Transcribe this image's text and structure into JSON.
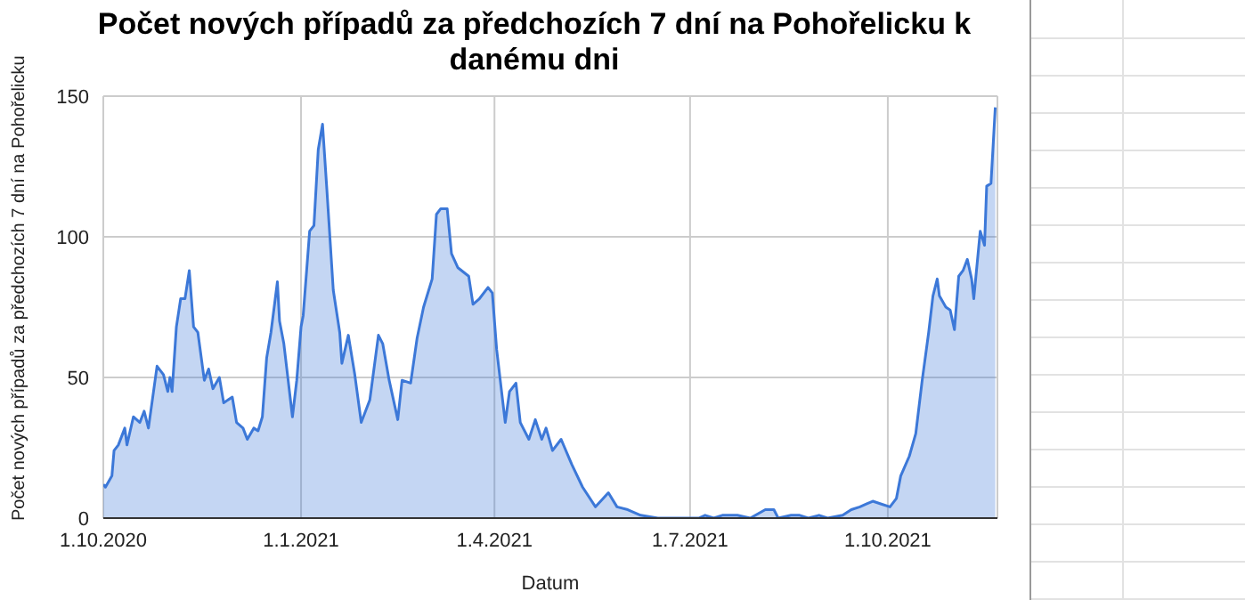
{
  "chart_data": {
    "type": "area",
    "title": "Počet nových případů za předchozích 7 dní na Pohořelicku k danému dni",
    "xlabel": "Datum",
    "ylabel": "Počet nových případů za předchozích 7 dní na Pohořelicku",
    "grid": true,
    "legend": false,
    "x": [
      "2020-10-01",
      "2020-10-02",
      "2020-10-05",
      "2020-10-06",
      "2020-10-08",
      "2020-10-11",
      "2020-10-12",
      "2020-10-15",
      "2020-10-18",
      "2020-10-20",
      "2020-10-22",
      "2020-10-24",
      "2020-10-26",
      "2020-10-29",
      "2020-10-31",
      "2020-11-01",
      "2020-11-02",
      "2020-11-04",
      "2020-11-06",
      "2020-11-08",
      "2020-11-10",
      "2020-11-12",
      "2020-11-14",
      "2020-11-17",
      "2020-11-19",
      "2020-11-21",
      "2020-11-24",
      "2020-11-26",
      "2020-11-30",
      "2020-12-02",
      "2020-12-05",
      "2020-12-07",
      "2020-12-10",
      "2020-12-12",
      "2020-12-14",
      "2020-12-16",
      "2020-12-18",
      "2020-12-20",
      "2020-12-21",
      "2020-12-22",
      "2020-12-24",
      "2020-12-26",
      "2020-12-28",
      "2020-12-30",
      "2021-01-01",
      "2021-01-02",
      "2021-01-05",
      "2021-01-07",
      "2021-01-09",
      "2021-01-11",
      "2021-01-13",
      "2021-01-16",
      "2021-01-19",
      "2021-01-20",
      "2021-01-23",
      "2021-01-26",
      "2021-01-29",
      "2021-02-02",
      "2021-02-06",
      "2021-02-08",
      "2021-02-11",
      "2021-02-15",
      "2021-02-17",
      "2021-02-21",
      "2021-02-24",
      "2021-02-27",
      "2021-03-03",
      "2021-03-05",
      "2021-03-07",
      "2021-03-10",
      "2021-03-12",
      "2021-03-15",
      "2021-03-20",
      "2021-03-22",
      "2021-03-25",
      "2021-03-29",
      "2021-03-31",
      "2021-04-02",
      "2021-04-06",
      "2021-04-08",
      "2021-04-11",
      "2021-04-13",
      "2021-04-17",
      "2021-04-20",
      "2021-04-23",
      "2021-04-25",
      "2021-04-28",
      "2021-05-02",
      "2021-05-07",
      "2021-05-12",
      "2021-05-18",
      "2021-05-24",
      "2021-05-28",
      "2021-06-02",
      "2021-06-08",
      "2021-06-16",
      "2021-07-01",
      "2021-07-05",
      "2021-07-08",
      "2021-07-12",
      "2021-07-16",
      "2021-07-23",
      "2021-07-29",
      "2021-08-05",
      "2021-08-09",
      "2021-08-11",
      "2021-08-17",
      "2021-08-21",
      "2021-08-25",
      "2021-08-30",
      "2021-09-03",
      "2021-09-10",
      "2021-09-14",
      "2021-09-18",
      "2021-09-21",
      "2021-09-24",
      "2021-09-28",
      "2021-10-02",
      "2021-10-05",
      "2021-10-07",
      "2021-10-11",
      "2021-10-14",
      "2021-10-17",
      "2021-10-20",
      "2021-10-22",
      "2021-10-24",
      "2021-10-25",
      "2021-10-28",
      "2021-10-30",
      "2021-11-01",
      "2021-11-03",
      "2021-11-05",
      "2021-11-07",
      "2021-11-09",
      "2021-11-10",
      "2021-11-13",
      "2021-11-15",
      "2021-11-16",
      "2021-11-18",
      "2021-11-20"
    ],
    "series": [
      {
        "color": "#3c78d8",
        "values": [
          12,
          11,
          15,
          24,
          26,
          32,
          26,
          36,
          34,
          38,
          32,
          43,
          54,
          51,
          45,
          50,
          45,
          68,
          78,
          78,
          88,
          68,
          66,
          49,
          53,
          46,
          50,
          41,
          43,
          34,
          32,
          28,
          32,
          31,
          36,
          57,
          66,
          78,
          84,
          70,
          62,
          49,
          36,
          49,
          68,
          72,
          102,
          104,
          131,
          140,
          117,
          81,
          66,
          55,
          65,
          51,
          34,
          42,
          65,
          62,
          49,
          35,
          49,
          48,
          64,
          75,
          85,
          108,
          110,
          110,
          94,
          89,
          86,
          76,
          78,
          82,
          80,
          60,
          34,
          45,
          48,
          34,
          28,
          35,
          28,
          32,
          24,
          28,
          19,
          11,
          4,
          9,
          4,
          3,
          1,
          0,
          0,
          0,
          1,
          0,
          1,
          1,
          0,
          3,
          3,
          0,
          1,
          1,
          0,
          1,
          0,
          1,
          3,
          4,
          5,
          6,
          5,
          4,
          7,
          15,
          22,
          30,
          49,
          66,
          79,
          85,
          79,
          75,
          74,
          67,
          86,
          88,
          92,
          85,
          78,
          102,
          97,
          118,
          119,
          146
        ]
      }
    ],
    "xlim": [
      "2020-10-01",
      "2021-11-21"
    ],
    "xticks": [
      {
        "value": "2020-10-01",
        "label": "1.10.2020"
      },
      {
        "value": "2021-01-01",
        "label": "1.1.2021"
      },
      {
        "value": "2021-04-01",
        "label": "1.4.2021"
      },
      {
        "value": "2021-07-01",
        "label": "1.7.2021"
      },
      {
        "value": "2021-10-01",
        "label": "1.10.2021"
      }
    ],
    "ylim": [
      0,
      150
    ],
    "yticks": [
      0,
      50,
      100,
      150
    ]
  }
}
